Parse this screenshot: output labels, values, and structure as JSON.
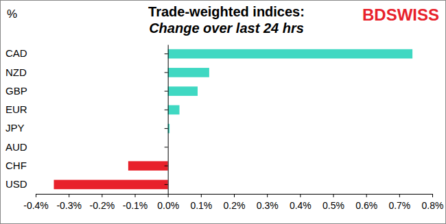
{
  "chart_data": {
    "type": "bar",
    "orientation": "horizontal",
    "title": "Trade-weighted indices:",
    "subtitle": "Change over last 24 hrs",
    "xlabel": "%",
    "annotations": [
      "BDSWISS"
    ],
    "categories": [
      "CAD",
      "NZD",
      "GBP",
      "EUR",
      "JPY",
      "AUD",
      "CHF",
      "USD"
    ],
    "values": [
      0.74,
      0.125,
      0.09,
      0.035,
      0.005,
      0.0,
      -0.12,
      -0.345
    ],
    "colors": [
      "#3fd8c2",
      "#3fd8c2",
      "#3fd8c2",
      "#3fd8c2",
      "#3fd8c2",
      "#3fd8c2",
      "#e8212b",
      "#e8212b"
    ],
    "xlim": [
      -0.4,
      0.8
    ],
    "xticks": [
      {
        "value": -0.4,
        "label": "-0.4%"
      },
      {
        "value": -0.3,
        "label": "-0.3%"
      },
      {
        "value": -0.2,
        "label": "-0.2%"
      },
      {
        "value": -0.1,
        "label": "-0.1%"
      },
      {
        "value": 0.0,
        "label": "0.0%"
      },
      {
        "value": 0.1,
        "label": "0.1%"
      },
      {
        "value": 0.2,
        "label": "0.2%"
      },
      {
        "value": 0.3,
        "label": "0.3%"
      },
      {
        "value": 0.4,
        "label": "0.4%"
      },
      {
        "value": 0.5,
        "label": "0.5%"
      },
      {
        "value": 0.6,
        "label": "0.6%"
      },
      {
        "value": 0.7,
        "label": "0.7%"
      },
      {
        "value": 0.8,
        "label": "0.8%"
      }
    ],
    "grid": false
  }
}
